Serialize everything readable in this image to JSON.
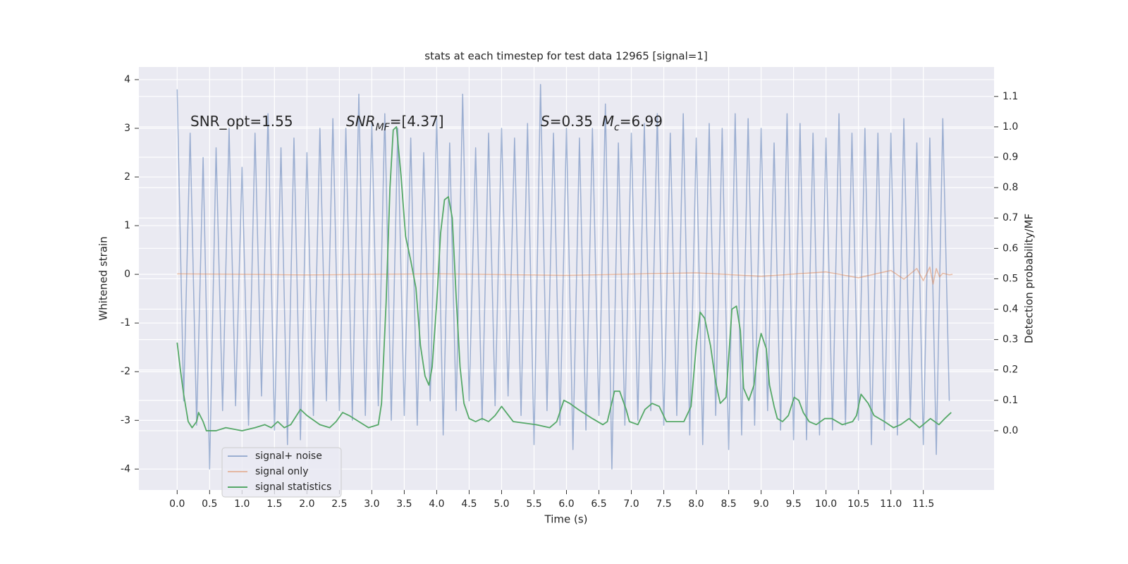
{
  "chart_data": {
    "type": "line",
    "title": "stats at each timestep for test data 12965 [signal=1]",
    "xlabel": "Time (s)",
    "ylabel": "Whitened strain",
    "y2label": "Detection probability/MF",
    "xlim": [
      -0.59,
      12.59
    ],
    "ylim": [
      -4.43,
      4.26
    ],
    "y2lim": [
      -0.195,
      1.197
    ],
    "xticks": [
      {
        "value": 0,
        "label": "0.0"
      },
      0.5,
      {
        "value": 1,
        "label": "1.0"
      },
      1.5,
      {
        "value": 2,
        "label": "2.0"
      },
      2.5,
      {
        "value": 3,
        "label": "3.0"
      },
      3.5,
      {
        "value": 4,
        "label": "4.0"
      },
      4.5,
      {
        "value": 5,
        "label": "5.0"
      },
      5.5,
      {
        "value": 6,
        "label": "6.0"
      },
      6.5,
      {
        "value": 7,
        "label": "7.0"
      },
      7.5,
      {
        "value": 8,
        "label": "8.0"
      },
      8.5,
      {
        "value": 9,
        "label": "9.0"
      },
      9.5,
      {
        "value": 10,
        "label": "10.0"
      },
      10.5,
      {
        "value": 11,
        "label": "11.0"
      },
      11.5
    ],
    "yticks": [
      -4,
      -3,
      -2,
      -1,
      0,
      1,
      2,
      3,
      4
    ],
    "y2ticks": [
      {
        "value": 0,
        "label": "0.0"
      },
      0.1,
      0.2,
      0.3,
      0.4,
      0.5,
      0.6,
      0.7,
      0.8,
      0.9,
      {
        "value": 1,
        "label": "1.0"
      },
      1.1
    ],
    "grid": true,
    "legend": "lower left",
    "annotations": [
      {
        "parts": [
          {
            "text": "SNR_opt=1.55"
          }
        ]
      },
      {
        "parts": [
          {
            "text": "SNR",
            "style": "italic"
          },
          {
            "text": "MF",
            "style": "sub"
          },
          {
            "text": "=[4.37]"
          }
        ]
      },
      {
        "parts": [
          {
            "text": "S",
            "style": "italic"
          },
          {
            "text": "=0.35  "
          },
          {
            "text": "M",
            "style": "italic"
          },
          {
            "text": "c",
            "style": "sub"
          },
          {
            "text": "=6.99"
          }
        ]
      }
    ],
    "series": [
      {
        "name": "signal+ noise",
        "color": "#4c72b0",
        "opacity": 0.5,
        "x": [
          0,
          0.1,
          0.2,
          0.3,
          0.4,
          0.5,
          0.6,
          0.7,
          0.8,
          0.9,
          1,
          1.1,
          1.2,
          1.3,
          1.4,
          1.5,
          1.6,
          1.7,
          1.8,
          1.9,
          2,
          2.1,
          2.2,
          2.3,
          2.4,
          2.5,
          2.6,
          2.7,
          2.8,
          2.9,
          3,
          3.1,
          3.2,
          3.3,
          3.4,
          3.5,
          3.6,
          3.7,
          3.8,
          3.9,
          4,
          4.1,
          4.2,
          4.3,
          4.4,
          4.5,
          4.6,
          4.7,
          4.8,
          4.9,
          5,
          5.1,
          5.2,
          5.3,
          5.4,
          5.5,
          5.6,
          5.7,
          5.8,
          5.9,
          6,
          6.1,
          6.2,
          6.3,
          6.4,
          6.5,
          6.6,
          6.7,
          6.8,
          6.9,
          7,
          7.1,
          7.2,
          7.3,
          7.4,
          7.5,
          7.6,
          7.7,
          7.8,
          7.9,
          8,
          8.1,
          8.2,
          8.3,
          8.4,
          8.5,
          8.6,
          8.7,
          8.8,
          8.9,
          9,
          9.1,
          9.2,
          9.3,
          9.4,
          9.5,
          9.6,
          9.7,
          9.8,
          9.9,
          10,
          10.1,
          10.2,
          10.3,
          10.4,
          10.5,
          10.6,
          10.7,
          10.8,
          10.9,
          11,
          11.1,
          11.2,
          11.3,
          11.4,
          11.5,
          11.6,
          11.7,
          11.8,
          11.9
        ],
        "values": [
          3.8,
          -2.6,
          2.9,
          -3.1,
          2.4,
          -4.0,
          2.6,
          -2.8,
          3.0,
          -2.7,
          2.2,
          -3.1,
          2.9,
          -2.5,
          3.3,
          -3.2,
          2.6,
          -3.5,
          2.8,
          -3.4,
          2.5,
          -2.9,
          3.0,
          -2.6,
          3.2,
          -2.8,
          3.0,
          -3.0,
          3.7,
          -2.9,
          3.1,
          -2.7,
          3.3,
          -3.0,
          3.0,
          -2.9,
          2.8,
          -3.1,
          2.5,
          -2.6,
          3.2,
          -3.3,
          2.7,
          -2.8,
          3.7,
          -2.6,
          2.6,
          -3.0,
          2.9,
          -2.7,
          3.0,
          -2.5,
          2.8,
          -2.9,
          3.1,
          -3.5,
          3.9,
          -2.8,
          2.9,
          -3.1,
          3.0,
          -3.6,
          2.8,
          -3.2,
          3.0,
          -2.9,
          3.5,
          -4.0,
          2.7,
          -3.1,
          2.9,
          -3.0,
          3.1,
          -2.8,
          3.3,
          -3.1,
          2.9,
          -2.9,
          3.3,
          -3.3,
          2.8,
          -3.5,
          3.1,
          -2.9,
          3.0,
          -3.6,
          3.3,
          -3.3,
          3.2,
          -3.1,
          3.0,
          -2.8,
          2.7,
          -3.2,
          3.3,
          -3.4,
          3.1,
          -3.4,
          2.9,
          -3.3,
          2.8,
          -3.2,
          3.3,
          -3.1,
          2.9,
          -3.0,
          3.0,
          -3.5,
          2.9,
          -3.2,
          2.9,
          -3.3,
          3.2,
          -3.0,
          2.7,
          -3.5,
          2.8,
          -3.7,
          3.2,
          -2.6
        ]
      },
      {
        "name": "signal only",
        "color": "#dd8452",
        "opacity": 0.5,
        "x": [
          0,
          2,
          4,
          6,
          8,
          9,
          10,
          10.5,
          11,
          11.2,
          11.4,
          11.5,
          11.6,
          11.65,
          11.7,
          11.75,
          11.8,
          11.9,
          11.95
        ],
        "values": [
          0.01,
          -0.01,
          0.01,
          -0.02,
          0.03,
          -0.04,
          0.05,
          -0.07,
          0.08,
          -0.1,
          0.12,
          -0.13,
          0.15,
          -0.2,
          0.12,
          -0.05,
          0.02,
          -0.01,
          0
        ]
      },
      {
        "name": "signal statistics",
        "color": "#55a868",
        "opacity": 1,
        "axis": "y2",
        "x": [
          0,
          0.05,
          0.1,
          0.17,
          0.23,
          0.3,
          0.33,
          0.4,
          0.45,
          0.6,
          0.75,
          1,
          1.2,
          1.35,
          1.45,
          1.55,
          1.65,
          1.75,
          1.9,
          2,
          2.2,
          2.35,
          2.45,
          2.55,
          2.65,
          2.8,
          2.95,
          3.1,
          3.15,
          3.22,
          3.28,
          3.33,
          3.38,
          3.45,
          3.52,
          3.6,
          3.68,
          3.75,
          3.82,
          3.88,
          3.93,
          4,
          4.06,
          4.12,
          4.18,
          4.24,
          4.3,
          4.36,
          4.42,
          4.5,
          4.6,
          4.7,
          4.8,
          4.9,
          5,
          5.18,
          5.53,
          5.74,
          5.85,
          5.96,
          6.05,
          6.18,
          6.4,
          6.56,
          6.63,
          6.74,
          6.82,
          6.92,
          6.97,
          7.1,
          7.21,
          7.32,
          7.43,
          7.54,
          7.68,
          7.81,
          7.92,
          8,
          8.06,
          8.13,
          8.22,
          8.3,
          8.37,
          8.46,
          8.55,
          8.62,
          8.68,
          8.73,
          8.81,
          8.89,
          8.95,
          9,
          9.08,
          9.13,
          9.2,
          9.25,
          9.33,
          9.42,
          9.51,
          9.58,
          9.65,
          9.74,
          9.85,
          9.98,
          10.09,
          10.25,
          10.41,
          10.47,
          10.54,
          10.65,
          10.74,
          10.9,
          11.04,
          11.15,
          11.28,
          11.44,
          11.61,
          11.74,
          11.83,
          11.93
        ],
        "values": [
          0.29,
          0.2,
          0.12,
          0.03,
          0.01,
          0.03,
          0.06,
          0.03,
          0,
          0,
          0.01,
          0,
          0.01,
          0.02,
          0.01,
          0.03,
          0.01,
          0.02,
          0.07,
          0.05,
          0.02,
          0.01,
          0.03,
          0.06,
          0.05,
          0.03,
          0.01,
          0.02,
          0.09,
          0.42,
          0.8,
          0.99,
          1,
          0.84,
          0.64,
          0.56,
          0.47,
          0.28,
          0.18,
          0.15,
          0.21,
          0.42,
          0.65,
          0.76,
          0.77,
          0.7,
          0.44,
          0.21,
          0.09,
          0.04,
          0.03,
          0.04,
          0.03,
          0.05,
          0.08,
          0.03,
          0.02,
          0.01,
          0.03,
          0.1,
          0.09,
          0.07,
          0.04,
          0.02,
          0.03,
          0.13,
          0.13,
          0.07,
          0.03,
          0.02,
          0.07,
          0.09,
          0.08,
          0.03,
          0.03,
          0.03,
          0.08,
          0.28,
          0.39,
          0.37,
          0.28,
          0.16,
          0.09,
          0.11,
          0.4,
          0.41,
          0.33,
          0.14,
          0.1,
          0.15,
          0.27,
          0.32,
          0.27,
          0.15,
          0.08,
          0.04,
          0.03,
          0.05,
          0.11,
          0.1,
          0.06,
          0.03,
          0.02,
          0.04,
          0.04,
          0.02,
          0.03,
          0.05,
          0.12,
          0.09,
          0.05,
          0.03,
          0.01,
          0.02,
          0.04,
          0.01,
          0.04,
          0.02,
          0.04,
          0.06
        ]
      }
    ]
  }
}
